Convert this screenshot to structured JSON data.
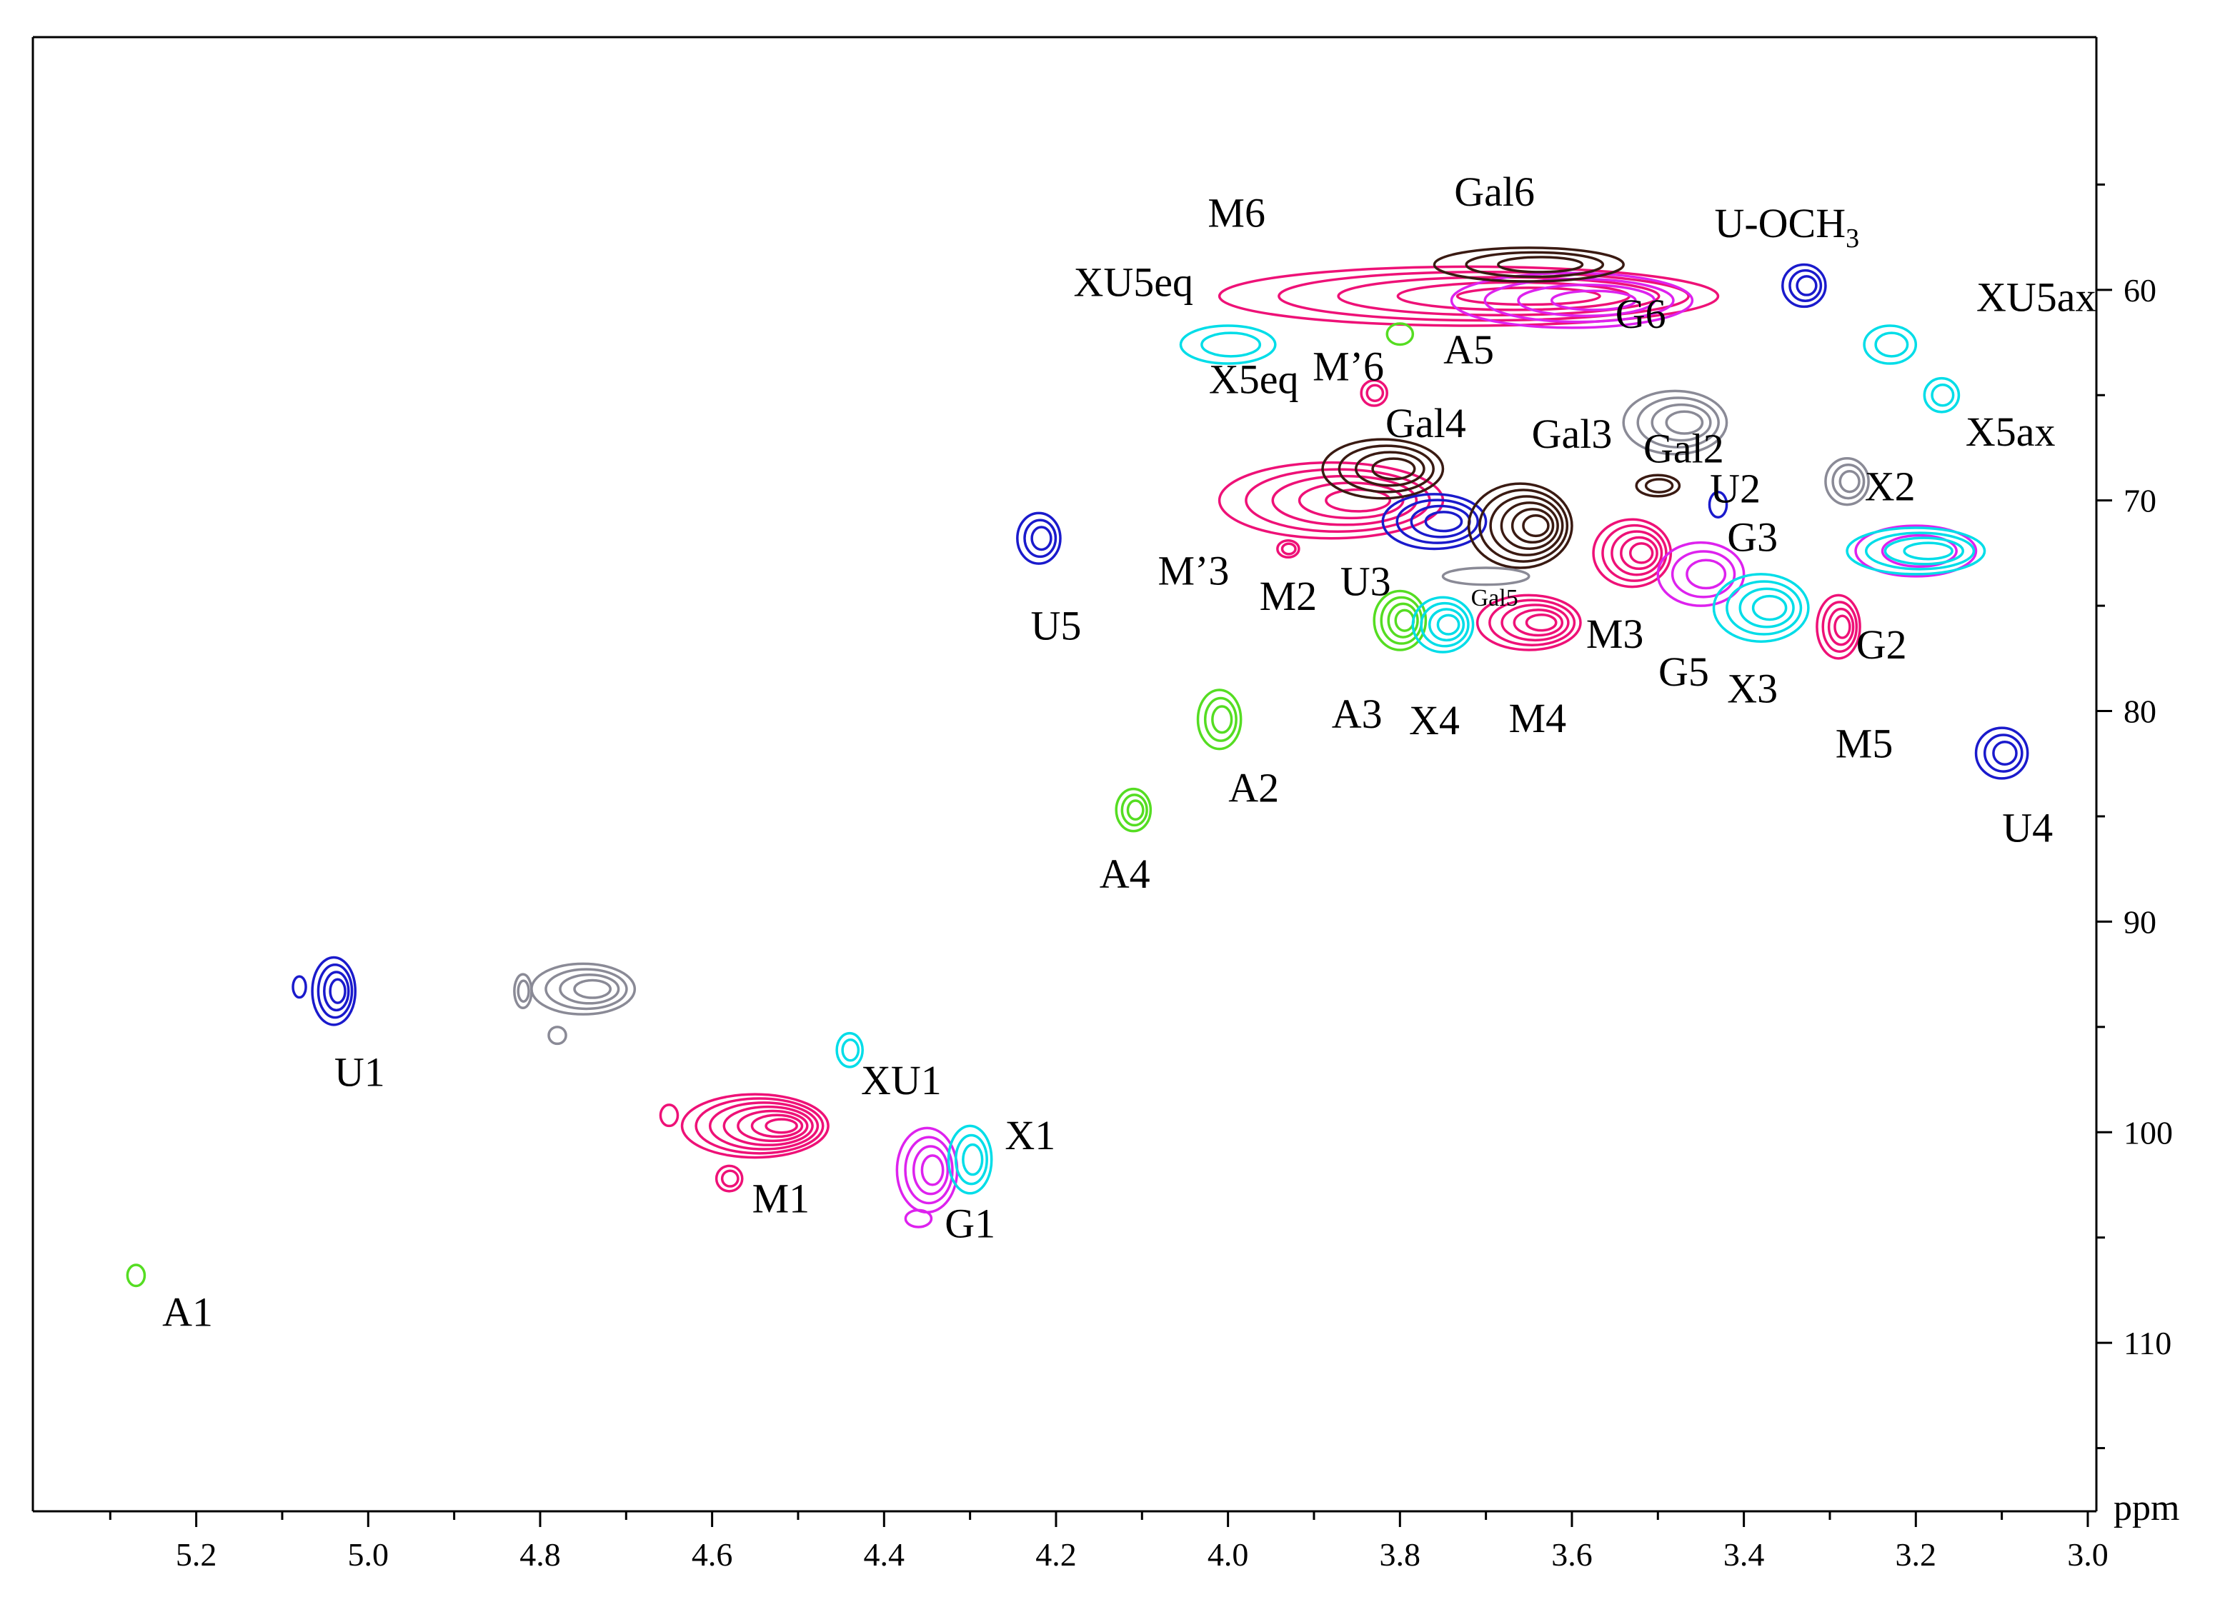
{
  "chart_data": {
    "type": "scatter",
    "subtype": "2D NMR contour plot",
    "title": "",
    "xlabel": "",
    "ylabel": "",
    "axis_unit": "ppm",
    "xlim": [
      5.39,
      2.99
    ],
    "ylim": [
      118.0,
      48.0
    ],
    "x_reversed": true,
    "y_reversed": true,
    "y_axis_position": "right",
    "grid": false,
    "legend": "none",
    "x_ticks": [
      {
        "value": 5.2,
        "label": "5.2"
      },
      {
        "value": 5.0,
        "label": "5.0"
      },
      {
        "value": 4.8,
        "label": "4.8"
      },
      {
        "value": 4.6,
        "label": "4.6"
      },
      {
        "value": 4.4,
        "label": "4.4"
      },
      {
        "value": 4.2,
        "label": "4.2"
      },
      {
        "value": 4.0,
        "label": "4.0"
      },
      {
        "value": 3.8,
        "label": "3.8"
      },
      {
        "value": 3.6,
        "label": "3.6"
      },
      {
        "value": 3.4,
        "label": "3.4"
      },
      {
        "value": 3.2,
        "label": "3.2"
      },
      {
        "value": 3.0,
        "label": "3.0"
      }
    ],
    "y_ticks": [
      {
        "value": 60,
        "label": "60"
      },
      {
        "value": 70,
        "label": "70"
      },
      {
        "value": 80,
        "label": "80"
      },
      {
        "value": 90,
        "label": "90"
      },
      {
        "value": 100,
        "label": "100"
      },
      {
        "value": 110,
        "label": "110"
      }
    ],
    "colors": {
      "blue": "#1a1acc",
      "magenta": "#ee1177",
      "cyan": "#00dde8",
      "green": "#55dd22",
      "violet": "#dd22ee",
      "brown": "#3a1a12",
      "gray": "#8a8a96"
    },
    "peaks": [
      {
        "x": 3.33,
        "y": 59.8,
        "w": 0.05,
        "h": 2.0,
        "color": "blue",
        "levels": 3
      },
      {
        "x": 3.23,
        "y": 62.6,
        "w": 0.06,
        "h": 1.8,
        "color": "cyan",
        "levels": 2
      },
      {
        "x": 3.17,
        "y": 65.0,
        "w": 0.04,
        "h": 1.6,
        "color": "cyan",
        "levels": 2
      },
      {
        "x": 3.28,
        "y": 69.1,
        "w": 0.05,
        "h": 2.2,
        "color": "gray",
        "levels": 3
      },
      {
        "x": 3.2,
        "y": 72.4,
        "w": 0.14,
        "h": 2.4,
        "color": "violet",
        "levels": 2
      },
      {
        "x": 3.2,
        "y": 72.4,
        "w": 0.16,
        "h": 2.2,
        "color": "cyan",
        "levels": 4
      },
      {
        "x": 3.1,
        "y": 82.0,
        "w": 0.06,
        "h": 2.4,
        "color": "blue",
        "levels": 3
      },
      {
        "x": 3.72,
        "y": 60.3,
        "w": 0.58,
        "h": 2.8,
        "color": "magenta",
        "levels": 5
      },
      {
        "x": 3.6,
        "y": 60.5,
        "w": 0.28,
        "h": 2.6,
        "color": "violet",
        "levels": 4
      },
      {
        "x": 3.65,
        "y": 58.8,
        "w": 0.22,
        "h": 1.6,
        "color": "brown",
        "levels": 3
      },
      {
        "x": 3.8,
        "y": 62.1,
        "w": 0.03,
        "h": 1.0,
        "color": "green",
        "levels": 1
      },
      {
        "x": 4.0,
        "y": 62.6,
        "w": 0.11,
        "h": 1.8,
        "color": "cyan",
        "levels": 2
      },
      {
        "x": 3.83,
        "y": 64.9,
        "w": 0.03,
        "h": 1.2,
        "color": "magenta",
        "levels": 2
      },
      {
        "x": 3.48,
        "y": 66.3,
        "w": 0.12,
        "h": 3.0,
        "color": "gray",
        "levels": 4
      },
      {
        "x": 3.5,
        "y": 69.3,
        "w": 0.05,
        "h": 1.0,
        "color": "brown",
        "levels": 2
      },
      {
        "x": 3.88,
        "y": 70.0,
        "w": 0.26,
        "h": 3.6,
        "color": "magenta",
        "levels": 5
      },
      {
        "x": 3.82,
        "y": 68.5,
        "w": 0.14,
        "h": 2.8,
        "color": "brown",
        "levels": 4
      },
      {
        "x": 3.76,
        "y": 71.0,
        "w": 0.12,
        "h": 2.6,
        "color": "blue",
        "levels": 4
      },
      {
        "x": 3.66,
        "y": 71.2,
        "w": 0.12,
        "h": 4.0,
        "color": "brown",
        "levels": 6
      },
      {
        "x": 3.7,
        "y": 73.6,
        "w": 0.1,
        "h": 0.8,
        "color": "gray",
        "levels": 1
      },
      {
        "x": 3.93,
        "y": 72.3,
        "w": 0.025,
        "h": 0.8,
        "color": "magenta",
        "levels": 2
      },
      {
        "x": 3.8,
        "y": 75.7,
        "w": 0.06,
        "h": 2.8,
        "color": "green",
        "levels": 4
      },
      {
        "x": 3.75,
        "y": 75.9,
        "w": 0.07,
        "h": 2.6,
        "color": "cyan",
        "levels": 4
      },
      {
        "x": 3.65,
        "y": 75.8,
        "w": 0.12,
        "h": 2.6,
        "color": "magenta",
        "levels": 5
      },
      {
        "x": 3.53,
        "y": 72.5,
        "w": 0.09,
        "h": 3.2,
        "color": "magenta",
        "levels": 5
      },
      {
        "x": 3.45,
        "y": 73.5,
        "w": 0.1,
        "h": 3.0,
        "color": "violet",
        "levels": 3
      },
      {
        "x": 3.38,
        "y": 75.1,
        "w": 0.11,
        "h": 3.2,
        "color": "cyan",
        "levels": 4
      },
      {
        "x": 3.29,
        "y": 76.0,
        "w": 0.05,
        "h": 3.0,
        "color": "magenta",
        "levels": 4
      },
      {
        "x": 3.43,
        "y": 70.2,
        "w": 0.02,
        "h": 1.2,
        "color": "blue",
        "levels": 1
      },
      {
        "x": 4.22,
        "y": 71.8,
        "w": 0.05,
        "h": 2.4,
        "color": "blue",
        "levels": 3
      },
      {
        "x": 4.01,
        "y": 80.4,
        "w": 0.05,
        "h": 2.8,
        "color": "green",
        "levels": 3
      },
      {
        "x": 4.11,
        "y": 84.7,
        "w": 0.04,
        "h": 2.0,
        "color": "green",
        "levels": 3
      },
      {
        "x": 5.04,
        "y": 93.3,
        "w": 0.05,
        "h": 3.2,
        "color": "blue",
        "levels": 4
      },
      {
        "x": 5.08,
        "y": 93.1,
        "w": 0.015,
        "h": 1.0,
        "color": "blue",
        "levels": 1
      },
      {
        "x": 4.75,
        "y": 93.2,
        "w": 0.12,
        "h": 2.4,
        "color": "gray",
        "levels": 4
      },
      {
        "x": 4.82,
        "y": 93.3,
        "w": 0.02,
        "h": 1.6,
        "color": "gray",
        "levels": 2
      },
      {
        "x": 4.78,
        "y": 95.4,
        "w": 0.02,
        "h": 0.8,
        "color": "gray",
        "levels": 1
      },
      {
        "x": 4.44,
        "y": 96.1,
        "w": 0.03,
        "h": 1.6,
        "color": "cyan",
        "levels": 2
      },
      {
        "x": 4.55,
        "y": 99.7,
        "w": 0.17,
        "h": 3.0,
        "color": "magenta",
        "levels": 7
      },
      {
        "x": 4.65,
        "y": 99.2,
        "w": 0.02,
        "h": 1.0,
        "color": "magenta",
        "levels": 1
      },
      {
        "x": 4.58,
        "y": 102.2,
        "w": 0.03,
        "h": 1.2,
        "color": "magenta",
        "levels": 2
      },
      {
        "x": 4.35,
        "y": 101.8,
        "w": 0.07,
        "h": 4.0,
        "color": "violet",
        "levels": 4
      },
      {
        "x": 4.3,
        "y": 101.3,
        "w": 0.05,
        "h": 3.2,
        "color": "cyan",
        "levels": 3
      },
      {
        "x": 4.36,
        "y": 104.1,
        "w": 0.03,
        "h": 0.8,
        "color": "violet",
        "levels": 1
      },
      {
        "x": 5.27,
        "y": 106.8,
        "w": 0.02,
        "h": 1.0,
        "color": "green",
        "levels": 1
      }
    ],
    "labels": [
      {
        "text": "Gal6",
        "x": 3.69,
        "y": 56.0
      },
      {
        "text": "M6",
        "x": 3.99,
        "y": 57.0
      },
      {
        "text": "U-OCH",
        "x": 3.35,
        "y": 57.5,
        "sub": "3"
      },
      {
        "text": "XU5eq",
        "x": 4.11,
        "y": 60.3
      },
      {
        "text": "G6",
        "x": 3.52,
        "y": 61.8
      },
      {
        "text": "XU5ax",
        "x": 3.06,
        "y": 61.0
      },
      {
        "text": "A5",
        "x": 3.72,
        "y": 63.5
      },
      {
        "text": "X5eq",
        "x": 3.97,
        "y": 64.9
      },
      {
        "text": "M’6",
        "x": 3.86,
        "y": 64.3
      },
      {
        "text": "X5ax",
        "x": 3.09,
        "y": 67.4
      },
      {
        "text": "Gal4",
        "x": 3.77,
        "y": 67.0
      },
      {
        "text": "Gal3",
        "x": 3.6,
        "y": 67.5
      },
      {
        "text": "Gal2",
        "x": 3.47,
        "y": 68.2
      },
      {
        "text": "U2",
        "x": 3.41,
        "y": 70.1
      },
      {
        "text": "X2",
        "x": 3.23,
        "y": 70.0
      },
      {
        "text": "G3",
        "x": 3.39,
        "y": 72.4
      },
      {
        "text": "M’3",
        "x": 4.04,
        "y": 74.0
      },
      {
        "text": "U3",
        "x": 3.84,
        "y": 74.5
      },
      {
        "text": "M2",
        "x": 3.93,
        "y": 75.2
      },
      {
        "text": "Gal5",
        "x": 3.69,
        "y": 75.0,
        "small": true
      },
      {
        "text": "U5",
        "x": 4.2,
        "y": 76.6
      },
      {
        "text": "M3",
        "x": 3.55,
        "y": 77.0
      },
      {
        "text": "G2",
        "x": 3.24,
        "y": 77.5
      },
      {
        "text": "G5",
        "x": 3.47,
        "y": 78.8
      },
      {
        "text": "X3",
        "x": 3.39,
        "y": 79.6
      },
      {
        "text": "A3",
        "x": 3.85,
        "y": 80.8
      },
      {
        "text": "X4",
        "x": 3.76,
        "y": 81.1
      },
      {
        "text": "M4",
        "x": 3.64,
        "y": 81.0
      },
      {
        "text": "M5",
        "x": 3.26,
        "y": 82.2
      },
      {
        "text": "A2",
        "x": 3.97,
        "y": 84.3
      },
      {
        "text": "U4",
        "x": 3.07,
        "y": 86.2
      },
      {
        "text": "A4",
        "x": 4.12,
        "y": 88.4
      },
      {
        "text": "U1",
        "x": 5.01,
        "y": 97.8
      },
      {
        "text": "XU1",
        "x": 4.38,
        "y": 98.2
      },
      {
        "text": "X1",
        "x": 4.23,
        "y": 100.8
      },
      {
        "text": "M1",
        "x": 4.52,
        "y": 103.8
      },
      {
        "text": "G1",
        "x": 4.3,
        "y": 105.0
      },
      {
        "text": "A1",
        "x": 5.21,
        "y": 109.2
      }
    ]
  }
}
